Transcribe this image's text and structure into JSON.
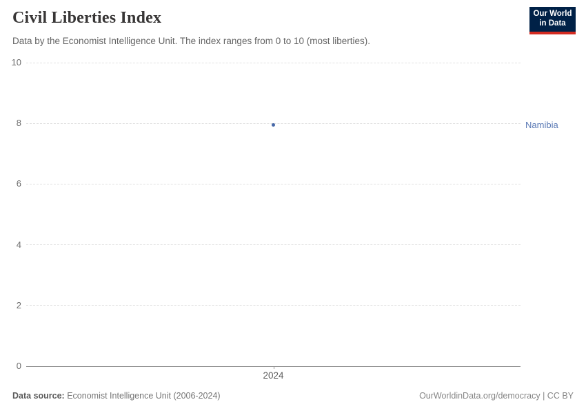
{
  "header": {
    "title": "Civil Liberties Index",
    "subtitle": "Data by the Economist Intelligence Unit. The index ranges from 0 to 10 (most liberties).",
    "logo": {
      "line1": "Our World",
      "line2": "in Data"
    }
  },
  "chart_data": {
    "type": "scatter",
    "title": "Civil Liberties Index",
    "x": [
      2024
    ],
    "xticks": [
      2024
    ],
    "series": [
      {
        "name": "Namibia",
        "values": [
          7.94
        ]
      }
    ],
    "xlabel": "",
    "ylabel": "",
    "ylim": [
      0,
      10
    ],
    "yticks": [
      0,
      2,
      4,
      6,
      8,
      10
    ],
    "grid": "horizontal-dashed",
    "legend_position": "right-entity-label",
    "entity_label": "Namibia"
  },
  "footer": {
    "source_label": "Data source:",
    "source_text": "Economist Intelligence Unit (2006-2024)",
    "credit": "OurWorldinData.org/democracy | CC BY"
  },
  "colors": {
    "series": "#4668a8",
    "entity_label": "#5b7ab5",
    "logo_bg": "#002147",
    "logo_bar": "#d42b21",
    "gridline": "#e0e0e0",
    "axisline": "#919191"
  }
}
